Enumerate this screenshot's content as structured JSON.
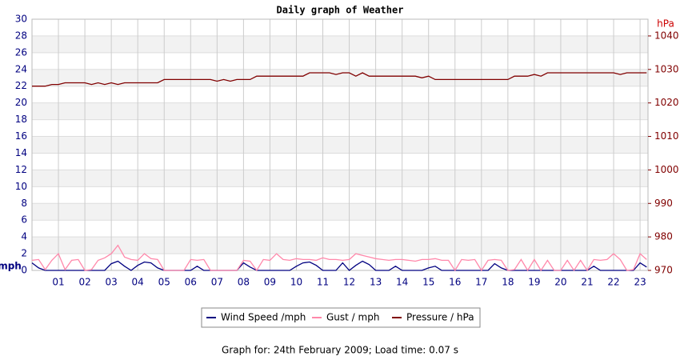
{
  "chart_data": {
    "type": "line",
    "title": "Daily graph of Weather",
    "y_label": "mph",
    "y2_label": "hPa",
    "footer": "Graph for: 24th February 2009; Load time: 0.07 s",
    "x": [
      0,
      0.25,
      0.5,
      0.75,
      1,
      1.25,
      1.5,
      1.75,
      2,
      2.25,
      2.5,
      2.75,
      3,
      3.25,
      3.5,
      3.75,
      4,
      4.25,
      4.5,
      4.75,
      5,
      5.25,
      5.5,
      5.75,
      6,
      6.25,
      6.5,
      6.75,
      7,
      7.25,
      7.5,
      7.75,
      8,
      8.25,
      8.5,
      8.75,
      9,
      9.25,
      9.5,
      9.75,
      10,
      10.25,
      10.5,
      10.75,
      11,
      11.25,
      11.5,
      11.75,
      12,
      12.25,
      12.5,
      12.75,
      13,
      13.25,
      13.5,
      13.75,
      14,
      14.25,
      14.5,
      14.75,
      15,
      15.25,
      15.5,
      15.75,
      16,
      16.25,
      16.5,
      16.75,
      17,
      17.25,
      17.5,
      17.75,
      18,
      18.25,
      18.5,
      18.75,
      19,
      19.25,
      19.5,
      19.75,
      20,
      20.25,
      20.5,
      20.75,
      21,
      21.25,
      21.5,
      21.75,
      22,
      22.25,
      22.5,
      22.75,
      23,
      23.25
    ],
    "xlim": [
      0,
      23.3
    ],
    "xticks": [
      {
        "value": 1,
        "label": "01"
      },
      {
        "value": 2,
        "label": "02"
      },
      {
        "value": 3,
        "label": "03"
      },
      {
        "value": 4,
        "label": "04"
      },
      {
        "value": 5,
        "label": "05"
      },
      {
        "value": 6,
        "label": "06"
      },
      {
        "value": 7,
        "label": "07"
      },
      {
        "value": 8,
        "label": "08"
      },
      {
        "value": 9,
        "label": "09"
      },
      {
        "value": 10,
        "label": "10"
      },
      {
        "value": 11,
        "label": "11"
      },
      {
        "value": 12,
        "label": "12"
      },
      {
        "value": 13,
        "label": "13"
      },
      {
        "value": 14,
        "label": "14"
      },
      {
        "value": 15,
        "label": "15"
      },
      {
        "value": 16,
        "label": "16"
      },
      {
        "value": 17,
        "label": "17"
      },
      {
        "value": 18,
        "label": "18"
      },
      {
        "value": 19,
        "label": "19"
      },
      {
        "value": 20,
        "label": "20"
      },
      {
        "value": 21,
        "label": "21"
      },
      {
        "value": 22,
        "label": "22"
      },
      {
        "value": 23,
        "label": "23"
      }
    ],
    "ylim": [
      0,
      30
    ],
    "yticks": [
      0,
      2,
      4,
      6,
      8,
      10,
      12,
      14,
      16,
      18,
      20,
      22,
      24,
      26,
      28,
      30
    ],
    "y2lim": [
      970,
      1045
    ],
    "y2ticks": [
      970,
      980,
      990,
      1000,
      1010,
      1020,
      1030,
      1040
    ],
    "grid": true,
    "series": [
      {
        "name": "Wind Speed /mph",
        "color": "#000080",
        "values": [
          0.9,
          0.3,
          0,
          0,
          0,
          0,
          0,
          0,
          0,
          0,
          0,
          0,
          0.8,
          1.1,
          0.5,
          0,
          0.6,
          1.0,
          0.9,
          0.3,
          0,
          0,
          0,
          0,
          0,
          0.5,
          0,
          0,
          0,
          0,
          0,
          0,
          0.9,
          0.4,
          0,
          0,
          0,
          0,
          0,
          0,
          0.5,
          0.9,
          1.0,
          0.6,
          0,
          0,
          0,
          0.9,
          0,
          0.6,
          1.1,
          0.7,
          0,
          0,
          0,
          0.5,
          0,
          0,
          0,
          0,
          0.3,
          0.5,
          0,
          0,
          0,
          0,
          0,
          0,
          0,
          0,
          0.8,
          0.3,
          0,
          0,
          0,
          0,
          0,
          0,
          0,
          0,
          0,
          0,
          0,
          0,
          0,
          0.5,
          0,
          0,
          0,
          0,
          0,
          0,
          0.9,
          0.4
        ]
      },
      {
        "name": "Gust / mph",
        "color": "#ff88aa",
        "values": [
          1.2,
          1.3,
          0.1,
          1.2,
          2.0,
          0.1,
          1.2,
          1.3,
          0,
          0.1,
          1.2,
          1.5,
          2.0,
          3.0,
          1.6,
          1.3,
          1.2,
          2.0,
          1.4,
          1.3,
          0,
          0,
          0,
          0,
          1.3,
          1.2,
          1.3,
          0,
          0,
          0,
          0,
          0,
          1.2,
          1.1,
          0,
          1.3,
          1.2,
          2.0,
          1.3,
          1.2,
          1.4,
          1.3,
          1.3,
          1.2,
          1.5,
          1.3,
          1.3,
          1.2,
          1.3,
          2.0,
          1.8,
          1.6,
          1.4,
          1.3,
          1.2,
          1.3,
          1.3,
          1.2,
          1.1,
          1.3,
          1.3,
          1.4,
          1.2,
          1.2,
          0,
          1.3,
          1.2,
          1.3,
          0,
          1.2,
          1.3,
          1.2,
          0,
          0.1,
          1.3,
          0,
          1.3,
          0,
          1.2,
          0,
          0,
          1.2,
          0,
          1.2,
          0,
          1.3,
          1.2,
          1.3,
          2.0,
          1.3,
          0,
          0.1,
          2.0,
          1.3
        ]
      },
      {
        "name": "Pressure / hPa",
        "color": "#800000",
        "axis": "y2",
        "values": [
          1025,
          1025,
          1025,
          1025.5,
          1025.5,
          1026,
          1026,
          1026,
          1026,
          1025.5,
          1026,
          1025.5,
          1026,
          1025.5,
          1026,
          1026,
          1026,
          1026,
          1026,
          1026,
          1027,
          1027,
          1027,
          1027,
          1027,
          1027,
          1027,
          1027,
          1026.5,
          1027,
          1026.5,
          1027,
          1027,
          1027,
          1028,
          1028,
          1028,
          1028,
          1028,
          1028,
          1028,
          1028,
          1029,
          1029,
          1029,
          1029,
          1028.5,
          1029,
          1029,
          1028,
          1029,
          1028,
          1028,
          1028,
          1028,
          1028,
          1028,
          1028,
          1028,
          1027.5,
          1028,
          1027,
          1027,
          1027,
          1027,
          1027,
          1027,
          1027,
          1027,
          1027,
          1027,
          1027,
          1027,
          1028,
          1028,
          1028,
          1028.5,
          1028,
          1029,
          1029,
          1029,
          1029,
          1029,
          1029,
          1029,
          1029,
          1029,
          1029,
          1029,
          1028.5,
          1029,
          1029,
          1029,
          1029
        ]
      }
    ]
  }
}
